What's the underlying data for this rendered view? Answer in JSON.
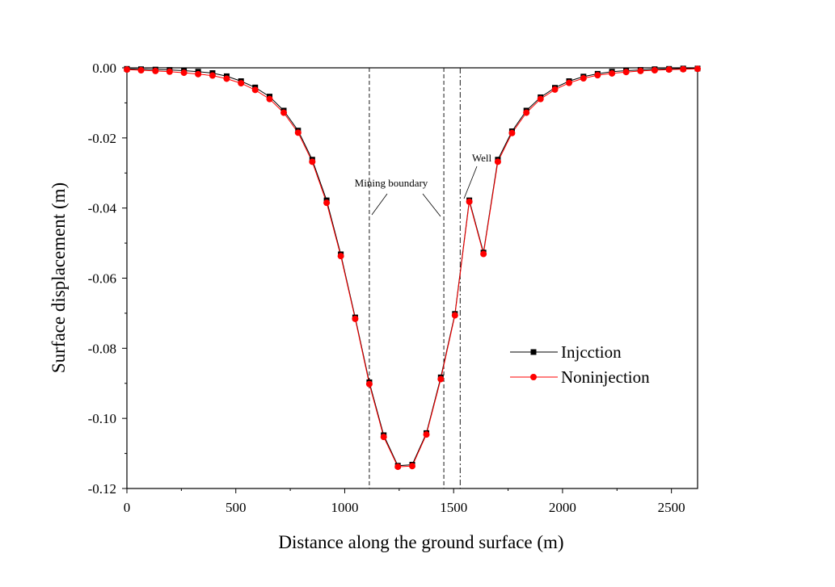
{
  "chart_data": {
    "type": "line",
    "title": "",
    "xlabel": "Distance along the ground surface (m)",
    "ylabel": "Surface displacement (m)",
    "xlim": [
      0,
      2620
    ],
    "ylim": [
      -0.12,
      0.0
    ],
    "xticks": [
      0,
      500,
      1000,
      1500,
      2000,
      2500
    ],
    "yticks": [
      0.0,
      -0.02,
      -0.04,
      -0.06,
      -0.08,
      -0.1,
      -0.12
    ],
    "xtick_labels": [
      "0",
      "500",
      "1000",
      "1500",
      "2000",
      "2500"
    ],
    "ytick_labels": [
      "0.00",
      "-0.02",
      "-0.04",
      "-0.06",
      "-0.08",
      "-0.10",
      "-0.12"
    ],
    "grid": false,
    "legend_position": "right",
    "x": [
      0,
      65,
      131,
      196,
      262,
      327,
      393,
      458,
      524,
      589,
      655,
      720,
      786,
      851,
      917,
      982,
      1048,
      1113,
      1179,
      1244,
      1310,
      1375,
      1441,
      1506,
      1572,
      1637,
      1703,
      1768,
      1834,
      1899,
      1965,
      2030,
      2096,
      2161,
      2227,
      2292,
      2358,
      2423,
      2489,
      2554,
      2620
    ],
    "series": [
      {
        "name": "Injcction",
        "color": "#000000",
        "marker": "square",
        "values": [
          -0.0003,
          -0.0004,
          -0.0005,
          -0.0006,
          -0.0008,
          -0.0011,
          -0.0015,
          -0.0024,
          -0.0038,
          -0.0056,
          -0.0082,
          -0.0122,
          -0.0179,
          -0.0262,
          -0.0378,
          -0.0532,
          -0.0712,
          -0.0897,
          -0.1048,
          -0.1135,
          -0.1132,
          -0.1042,
          -0.0883,
          -0.0702,
          -0.0378,
          -0.0527,
          -0.0262,
          -0.0181,
          -0.0122,
          -0.0084,
          -0.0057,
          -0.0038,
          -0.0025,
          -0.0017,
          -0.0011,
          -0.0008,
          -0.0006,
          -0.0004,
          -0.0003,
          -0.0002,
          -0.0002
        ]
      },
      {
        "name": "Noninjection",
        "color": "#ff0000",
        "marker": "circle",
        "values": [
          -0.0005,
          -0.0007,
          -0.0009,
          -0.0011,
          -0.0014,
          -0.0018,
          -0.0022,
          -0.0031,
          -0.0044,
          -0.0063,
          -0.0089,
          -0.0128,
          -0.0185,
          -0.0268,
          -0.0385,
          -0.0537,
          -0.0716,
          -0.0902,
          -0.1053,
          -0.1138,
          -0.1136,
          -0.1046,
          -0.0888,
          -0.0706,
          -0.0382,
          -0.0531,
          -0.0268,
          -0.0186,
          -0.0128,
          -0.0089,
          -0.0062,
          -0.0043,
          -0.003,
          -0.0021,
          -0.0016,
          -0.0012,
          -0.0009,
          -0.0007,
          -0.0005,
          -0.0004,
          -0.0003
        ]
      }
    ],
    "vertical_lines": [
      {
        "x": 1113,
        "style": "dashed"
      },
      {
        "x": 1455,
        "style": "dashed"
      },
      {
        "x": 1530,
        "style": "dashdot"
      }
    ],
    "annotations": [
      {
        "text": "Mining boundary"
      },
      {
        "text": "Well"
      }
    ]
  }
}
